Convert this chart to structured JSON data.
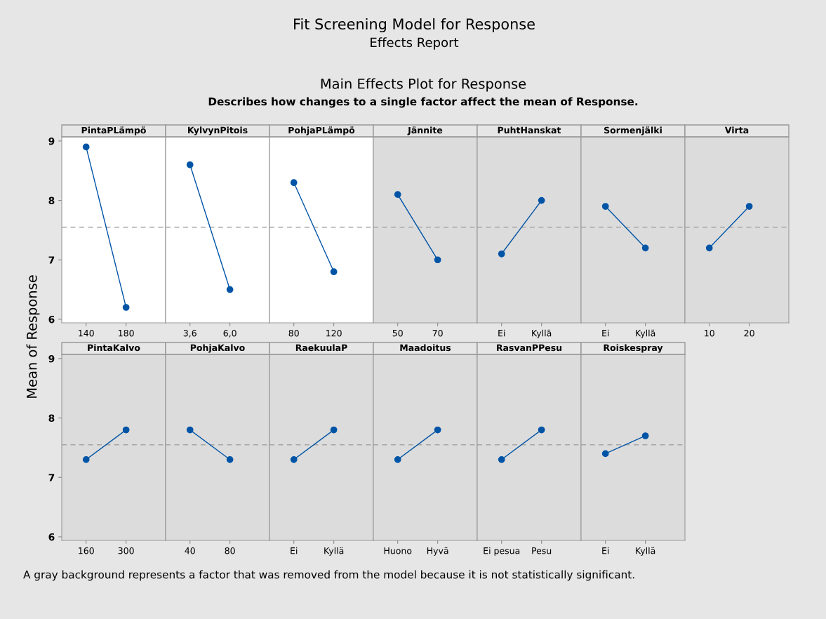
{
  "chart_data": [
    {
      "type": "line",
      "title": "PintaPLämpö",
      "ylabel": "Mean of Response",
      "annotations": [
        "Fit Screening Model for Response",
        "Effects Report",
        "Main Effects Plot for Response",
        "Describes how changes to a single factor affect the mean of Response.",
        "A gray background represents a factor that was removed from the model because it is not statistically significant."
      ],
      "categories": [
        "140",
        "180"
      ],
      "values": [
        8.9,
        6.2
      ],
      "color": "#0054a6",
      "marker": "circle",
      "ylim": [
        5.94,
        9.07
      ],
      "yticks": [
        6,
        7,
        8,
        9
      ],
      "ref_lines": [
        {
          "axis": "y",
          "value": 7.55,
          "color": "#a6a6a6",
          "line_style": "dashed"
        }
      ],
      "grid": false
    },
    {
      "type": "line",
      "title": "KylvynPitois",
      "categories": [
        "3,6",
        "6,0"
      ],
      "values": [
        8.6,
        6.5
      ],
      "color": "#0054a6",
      "marker": "circle",
      "ylim": [
        5.94,
        9.07
      ],
      "yticks": [
        6,
        7,
        8,
        9
      ],
      "tick_labels": "x",
      "ref_lines": [
        {
          "axis": "y",
          "value": 7.55,
          "color": "#a6a6a6",
          "line_style": "dashed"
        }
      ]
    },
    {
      "type": "line",
      "title": "PohjaPLämpö",
      "categories": [
        "80",
        "120"
      ],
      "values": [
        8.3,
        6.8
      ],
      "color": "#0054a6",
      "marker": "circle",
      "ylim": [
        5.94,
        9.07
      ],
      "yticks": [
        6,
        7,
        8,
        9
      ],
      "tick_labels": "x",
      "ref_lines": [
        {
          "axis": "y",
          "value": 7.55,
          "color": "#a6a6a6",
          "line_style": "dashed"
        }
      ]
    },
    {
      "type": "line",
      "title": "Jännite",
      "categories": [
        "50",
        "70"
      ],
      "values": [
        8.1,
        7.0
      ],
      "color": "#0054a6",
      "marker": "circle",
      "ylim": [
        5.94,
        9.07
      ],
      "yticks": [
        6,
        7,
        8,
        9
      ],
      "tick_labels": "x",
      "ref_lines": [
        {
          "axis": "y",
          "value": 7.55,
          "color": "#a6a6a6",
          "line_style": "dashed"
        }
      ],
      "bands": [
        {
          "axis": "y",
          "from": 5.94,
          "to": 9.07,
          "color": "#dcdcdc"
        }
      ]
    },
    {
      "type": "line",
      "title": "PuhtHanskat",
      "categories": [
        "Ei",
        "Kyllä"
      ],
      "values": [
        7.1,
        8.0
      ],
      "color": "#0054a6",
      "marker": "circle",
      "ylim": [
        5.94,
        9.07
      ],
      "yticks": [
        6,
        7,
        8,
        9
      ],
      "tick_labels": "x",
      "ref_lines": [
        {
          "axis": "y",
          "value": 7.55,
          "color": "#a6a6a6",
          "line_style": "dashed"
        }
      ],
      "bands": [
        {
          "axis": "y",
          "from": 5.94,
          "to": 9.07,
          "color": "#dcdcdc"
        }
      ]
    },
    {
      "type": "line",
      "title": "Sormenjälki",
      "categories": [
        "Ei",
        "Kyllä"
      ],
      "values": [
        7.9,
        7.2
      ],
      "color": "#0054a6",
      "marker": "circle",
      "ylim": [
        5.94,
        9.07
      ],
      "yticks": [
        6,
        7,
        8,
        9
      ],
      "tick_labels": "x",
      "ref_lines": [
        {
          "axis": "y",
          "value": 7.55,
          "color": "#a6a6a6",
          "line_style": "dashed"
        }
      ],
      "bands": [
        {
          "axis": "y",
          "from": 5.94,
          "to": 9.07,
          "color": "#dcdcdc"
        }
      ]
    },
    {
      "type": "line",
      "title": "Virta",
      "categories": [
        "10",
        "20"
      ],
      "values": [
        7.2,
        7.9
      ],
      "color": "#0054a6",
      "marker": "circle",
      "ylim": [
        5.94,
        9.07
      ],
      "yticks": [
        6,
        7,
        8,
        9
      ],
      "tick_labels": "x",
      "ref_lines": [
        {
          "axis": "y",
          "value": 7.55,
          "color": "#a6a6a6",
          "line_style": "dashed"
        }
      ],
      "bands": [
        {
          "axis": "y",
          "from": 5.94,
          "to": 9.07,
          "color": "#dcdcdc"
        }
      ]
    },
    {
      "type": "line",
      "title": "PintaKalvo",
      "categories": [
        "160",
        "300"
      ],
      "values": [
        7.3,
        7.8
      ],
      "color": "#0054a6",
      "marker": "circle",
      "ylim": [
        5.94,
        9.07
      ],
      "yticks": [
        6,
        7,
        8,
        9
      ],
      "ref_lines": [
        {
          "axis": "y",
          "value": 7.55,
          "color": "#a6a6a6",
          "line_style": "dashed"
        }
      ],
      "bands": [
        {
          "axis": "y",
          "from": 5.94,
          "to": 9.07,
          "color": "#dcdcdc"
        }
      ]
    },
    {
      "type": "line",
      "title": "PohjaKalvo",
      "categories": [
        "40",
        "80"
      ],
      "values": [
        7.8,
        7.3
      ],
      "color": "#0054a6",
      "marker": "circle",
      "ylim": [
        5.94,
        9.07
      ],
      "yticks": [
        6,
        7,
        8,
        9
      ],
      "tick_labels": "x",
      "ref_lines": [
        {
          "axis": "y",
          "value": 7.55,
          "color": "#a6a6a6",
          "line_style": "dashed"
        }
      ],
      "bands": [
        {
          "axis": "y",
          "from": 5.94,
          "to": 9.07,
          "color": "#dcdcdc"
        }
      ]
    },
    {
      "type": "line",
      "title": "RaekuulaP",
      "categories": [
        "Ei",
        "Kyllä"
      ],
      "values": [
        7.3,
        7.8
      ],
      "color": "#0054a6",
      "marker": "circle",
      "ylim": [
        5.94,
        9.07
      ],
      "yticks": [
        6,
        7,
        8,
        9
      ],
      "tick_labels": "x",
      "ref_lines": [
        {
          "axis": "y",
          "value": 7.55,
          "color": "#a6a6a6",
          "line_style": "dashed"
        }
      ],
      "bands": [
        {
          "axis": "y",
          "from": 5.94,
          "to": 9.07,
          "color": "#dcdcdc"
        }
      ]
    },
    {
      "type": "line",
      "title": "Maadoitus",
      "categories": [
        "Huono",
        "Hyvä"
      ],
      "values": [
        7.3,
        7.8
      ],
      "color": "#0054a6",
      "marker": "circle",
      "ylim": [
        5.94,
        9.07
      ],
      "yticks": [
        6,
        7,
        8,
        9
      ],
      "tick_labels": "x",
      "ref_lines": [
        {
          "axis": "y",
          "value": 7.55,
          "color": "#a6a6a6",
          "line_style": "dashed"
        }
      ],
      "bands": [
        {
          "axis": "y",
          "from": 5.94,
          "to": 9.07,
          "color": "#dcdcdc"
        }
      ]
    },
    {
      "type": "line",
      "title": "RasvanPPesu",
      "categories": [
        "Ei pesua",
        "Pesu"
      ],
      "values": [
        7.3,
        7.8
      ],
      "color": "#0054a6",
      "marker": "circle",
      "ylim": [
        5.94,
        9.07
      ],
      "yticks": [
        6,
        7,
        8,
        9
      ],
      "tick_labels": "x",
      "ref_lines": [
        {
          "axis": "y",
          "value": 7.55,
          "color": "#a6a6a6",
          "line_style": "dashed"
        }
      ],
      "bands": [
        {
          "axis": "y",
          "from": 5.94,
          "to": 9.07,
          "color": "#dcdcdc"
        }
      ]
    },
    {
      "type": "line",
      "title": "Roiskespray",
      "categories": [
        "Ei",
        "Kyllä"
      ],
      "values": [
        7.4,
        7.7
      ],
      "color": "#0054a6",
      "marker": "circle",
      "ylim": [
        5.94,
        9.07
      ],
      "yticks": [
        6,
        7,
        8,
        9
      ],
      "tick_labels": "x",
      "ref_lines": [
        {
          "axis": "y",
          "value": 7.55,
          "color": "#a6a6a6",
          "line_style": "dashed"
        }
      ],
      "bands": [
        {
          "axis": "y",
          "from": 5.94,
          "to": 9.07,
          "color": "#dcdcdc"
        }
      ]
    }
  ]
}
